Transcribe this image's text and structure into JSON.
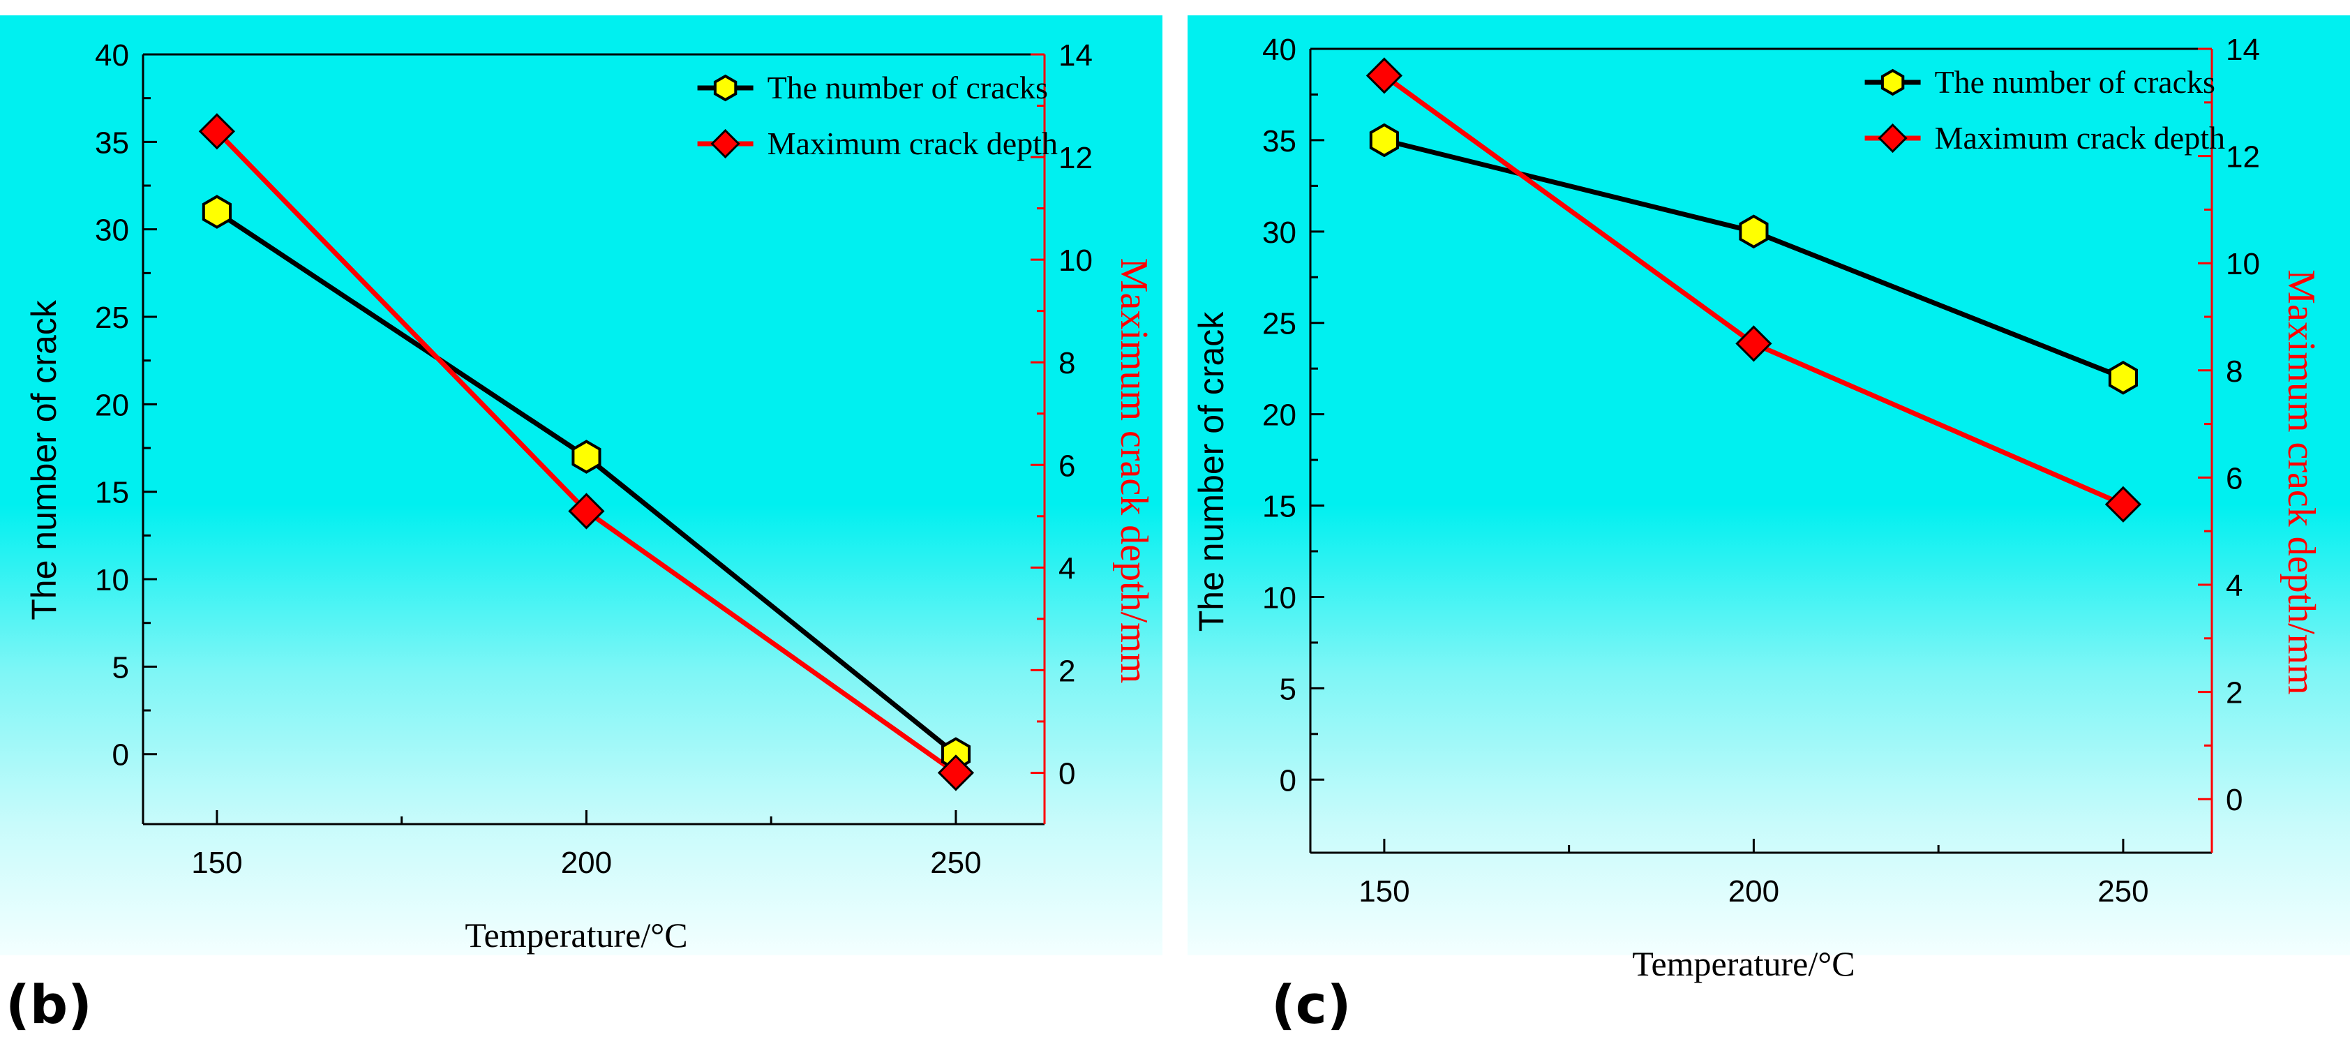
{
  "chart_data": [
    {
      "type": "line",
      "panel_label": "(b)",
      "xlabel": "Temperature/°C",
      "x_ticks": [
        "150",
        "200",
        "250"
      ],
      "xlim": [
        140,
        262
      ],
      "ylabel_left": "The number of crack",
      "ylim_left": [
        -4,
        40
      ],
      "yticks_left": [
        "0",
        "5",
        "10",
        "15",
        "20",
        "25",
        "30",
        "35",
        "40"
      ],
      "ylabel_right": "Maximum crack depth/mm",
      "ylim_right": [
        -1,
        14
      ],
      "yticks_right": [
        "0",
        "2",
        "4",
        "6",
        "8",
        "10",
        "12",
        "14"
      ],
      "legend_position": "top-right",
      "series": [
        {
          "name": "The number of cracks",
          "axis": "left",
          "color": "#000000",
          "marker_fill": "#ffff00",
          "marker": "hexagon",
          "x": [
            150,
            200,
            250
          ],
          "values": [
            31,
            17,
            0
          ]
        },
        {
          "name": "Maximum crack depth",
          "axis": "right",
          "color": "#ff0000",
          "marker_fill": "#ff0000",
          "marker": "diamond",
          "x": [
            150,
            200,
            250
          ],
          "values": [
            12.5,
            5.1,
            0
          ]
        }
      ]
    },
    {
      "type": "line",
      "panel_label": "(c)",
      "xlabel": "Temperature/°C",
      "x_ticks": [
        "150",
        "200",
        "250"
      ],
      "xlim": [
        140,
        262
      ],
      "ylabel_left": "The number of crack",
      "ylim_left": [
        -4,
        40
      ],
      "yticks_left": [
        "0",
        "5",
        "10",
        "15",
        "20",
        "25",
        "30",
        "35",
        "40"
      ],
      "ylabel_right": "Maximum crack depth/mm",
      "ylim_right": [
        -1,
        14
      ],
      "yticks_right": [
        "0",
        "2",
        "4",
        "6",
        "8",
        "10",
        "12",
        "14"
      ],
      "legend_position": "top-right",
      "series": [
        {
          "name": "The number of cracks",
          "axis": "left",
          "color": "#000000",
          "marker_fill": "#ffff00",
          "marker": "hexagon",
          "x": [
            150,
            200,
            250
          ],
          "values": [
            35,
            30,
            22
          ]
        },
        {
          "name": "Maximum crack depth",
          "axis": "right",
          "color": "#ff0000",
          "marker_fill": "#ff0000",
          "marker": "diamond",
          "x": [
            150,
            200,
            250
          ],
          "values": [
            13.5,
            8.5,
            5.5
          ]
        }
      ]
    }
  ]
}
